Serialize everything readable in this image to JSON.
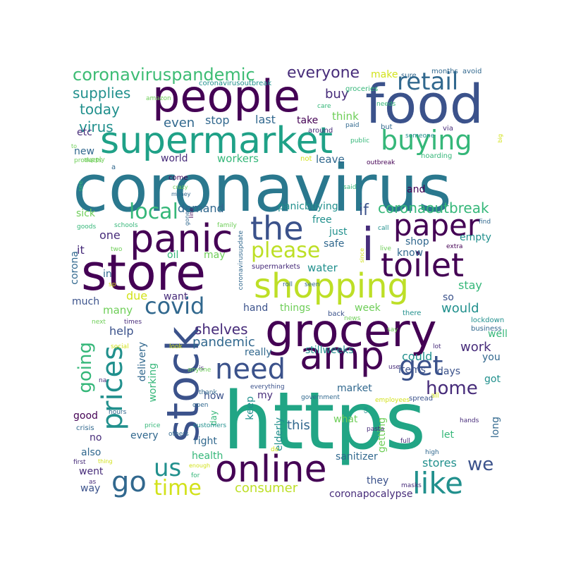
{
  "palette": {
    "dark_purple": "#440154",
    "indigo": "#472c7a",
    "blue": "#3b528b",
    "slate": "#31688e",
    "teal": "#21908d",
    "sea": "#1f9e89",
    "green": "#35b779",
    "lime": "#6ece58",
    "yellow": "#bddf26"
  },
  "words": [
    {
      "text": "coronavirus",
      "color": "#2a788e"
    },
    {
      "text": "https",
      "color": "#21a585"
    },
    {
      "text": "food",
      "color": "#3b528b"
    },
    {
      "text": "people",
      "color": "#440154"
    },
    {
      "text": "store",
      "color": "#440154"
    },
    {
      "text": "grocery",
      "color": "#440154"
    },
    {
      "text": "supermarket",
      "color": "#1fa187"
    },
    {
      "text": "stock",
      "color": "#3b528b"
    },
    {
      "text": "panic",
      "color": "#440154"
    },
    {
      "text": "shopping",
      "color": "#bddf26"
    },
    {
      "text": "amp",
      "color": "#440154"
    },
    {
      "text": "i",
      "color": "#472c7a"
    },
    {
      "text": "the",
      "color": "#3b528b"
    },
    {
      "text": "online",
      "color": "#440154"
    },
    {
      "text": "toilet",
      "color": "#440154"
    },
    {
      "text": "paper",
      "color": "#440154"
    },
    {
      "text": "prices",
      "color": "#21908d"
    },
    {
      "text": "buying",
      "color": "#35b779"
    },
    {
      "text": "retail",
      "color": "#31688e"
    },
    {
      "text": "go",
      "color": "#31688e"
    },
    {
      "text": "need",
      "color": "#3b528b"
    },
    {
      "text": "get",
      "color": "#3b528b"
    },
    {
      "text": "like",
      "color": "#21908d"
    },
    {
      "text": "please",
      "color": "#bddf26"
    },
    {
      "text": "covid",
      "color": "#31688e"
    },
    {
      "text": "going",
      "color": "#35b779"
    },
    {
      "text": "time",
      "color": "#d2e21b"
    },
    {
      "text": "us",
      "color": "#21908d"
    },
    {
      "text": "local",
      "color": "#35b779"
    },
    {
      "text": "home",
      "color": "#472c7a"
    },
    {
      "text": "we",
      "color": "#3b528b"
    },
    {
      "text": "coronavirusoutbreak",
      "color": "#21908d"
    },
    {
      "text": "coronavirus",
      "color": "#21908d"
    },
    {
      "text": "coronaoutbreak",
      "color": "#35b779"
    },
    {
      "text": "coronaviruspandemic",
      "color": "#3dbc74"
    },
    {
      "text": "everyone",
      "color": "#472c7a"
    },
    {
      "text": "supplies",
      "color": "#21908d"
    },
    {
      "text": "today",
      "color": "#21908d"
    },
    {
      "text": "virus",
      "color": "#21908d"
    },
    {
      "text": "even",
      "color": "#31688e"
    },
    {
      "text": "stop",
      "color": "#31688e"
    },
    {
      "text": "last",
      "color": "#31688e"
    },
    {
      "text": "take",
      "color": "#440154"
    },
    {
      "text": "buy",
      "color": "#472c7a"
    },
    {
      "text": "make",
      "color": "#d2e21b"
    },
    {
      "text": "think",
      "color": "#6ece58"
    },
    {
      "text": "etc",
      "color": "#472c7a"
    },
    {
      "text": "new",
      "color": "#31688e"
    },
    {
      "text": "world",
      "color": "#472c7a"
    },
    {
      "text": "workers",
      "color": "#35b779"
    },
    {
      "text": "leave",
      "color": "#31688e"
    },
    {
      "text": "and",
      "color": "#440154"
    },
    {
      "text": "demand",
      "color": "#31688e"
    },
    {
      "text": "panicbuying",
      "color": "#21908d"
    },
    {
      "text": "if",
      "color": "#3b528b"
    },
    {
      "text": "free",
      "color": "#21908d"
    },
    {
      "text": "just",
      "color": "#21908d"
    },
    {
      "text": "safe",
      "color": "#31688e"
    },
    {
      "text": "shop",
      "color": "#31688e"
    },
    {
      "text": "empty",
      "color": "#21908d"
    },
    {
      "text": "know",
      "color": "#31688e"
    },
    {
      "text": "water",
      "color": "#21908d"
    },
    {
      "text": "stay",
      "color": "#35b779"
    },
    {
      "text": "one",
      "color": "#472c7a"
    },
    {
      "text": "it",
      "color": "#472c7a"
    },
    {
      "text": "oil",
      "color": "#35b779"
    },
    {
      "text": "may",
      "color": "#6ece58"
    },
    {
      "text": "sick",
      "color": "#6ece58"
    },
    {
      "text": "corona",
      "color": "#31688e"
    },
    {
      "text": "in",
      "color": "#31688e"
    },
    {
      "text": "due",
      "color": "#d2e21b"
    },
    {
      "text": "want",
      "color": "#472c7a"
    },
    {
      "text": "much",
      "color": "#3b528b"
    },
    {
      "text": "many",
      "color": "#6ece58"
    },
    {
      "text": "hand",
      "color": "#3b528b"
    },
    {
      "text": "things",
      "color": "#6ece58"
    },
    {
      "text": "week",
      "color": "#6ece58"
    },
    {
      "text": "so",
      "color": "#3b528b"
    },
    {
      "text": "would",
      "color": "#21908d"
    },
    {
      "text": "help",
      "color": "#3b528b"
    },
    {
      "text": "shelves",
      "color": "#472c7a"
    },
    {
      "text": "pandemic",
      "color": "#31688e"
    },
    {
      "text": "really",
      "color": "#31688e"
    },
    {
      "text": "stillweeks",
      "color": "#21908d"
    },
    {
      "text": "work",
      "color": "#472c7a"
    },
    {
      "text": "well",
      "color": "#35b779"
    },
    {
      "text": "could",
      "color": "#21908d"
    },
    {
      "text": "days",
      "color": "#3b528b"
    },
    {
      "text": "you",
      "color": "#31688e"
    },
    {
      "text": "got",
      "color": "#21908d"
    },
    {
      "text": "delivery",
      "color": "#31688e"
    },
    {
      "text": "working",
      "color": "#35b779"
    },
    {
      "text": "how",
      "color": "#3b528b"
    },
    {
      "text": "my",
      "color": "#472c7a"
    },
    {
      "text": "market",
      "color": "#31688e"
    },
    {
      "text": "items",
      "color": "#3b528b"
    },
    {
      "text": "day",
      "color": "#35b779"
    },
    {
      "text": "keep",
      "color": "#21908d"
    },
    {
      "text": "this",
      "color": "#31688e"
    },
    {
      "text": "what",
      "color": "#6ece58"
    },
    {
      "text": "getting",
      "color": "#6ece58"
    },
    {
      "text": "let",
      "color": "#35b779"
    },
    {
      "text": "long",
      "color": "#31688e"
    },
    {
      "text": "good",
      "color": "#440154"
    },
    {
      "text": "no",
      "color": "#472c7a"
    },
    {
      "text": "every",
      "color": "#31688e"
    },
    {
      "text": "right",
      "color": "#31688e"
    },
    {
      "text": "also",
      "color": "#31688e"
    },
    {
      "text": "health",
      "color": "#35b779"
    },
    {
      "text": "elderly",
      "color": "#21908d"
    },
    {
      "text": "sanitizer",
      "color": "#31688e"
    },
    {
      "text": "stores",
      "color": "#21908d"
    },
    {
      "text": "went",
      "color": "#472c7a"
    },
    {
      "text": "way",
      "color": "#3b528b"
    },
    {
      "text": "consumer",
      "color": "#bddf26"
    },
    {
      "text": "they",
      "color": "#3b528b"
    },
    {
      "text": "coronapocalypse",
      "color": "#472c7a"
    },
    {
      "text": "months",
      "color": "#31688e"
    },
    {
      "text": "avoid",
      "color": "#31688e"
    },
    {
      "text": "sure",
      "color": "#31688e"
    },
    {
      "text": "groceries",
      "color": "#35b779"
    },
    {
      "text": "care",
      "color": "#35b779"
    },
    {
      "text": "needs",
      "color": "#35b779"
    },
    {
      "text": "amazon",
      "color": "#6ece58"
    },
    {
      "text": "paid",
      "color": "#31688e"
    },
    {
      "text": "but",
      "color": "#31688e"
    },
    {
      "text": "via",
      "color": "#472c7a"
    },
    {
      "text": "big",
      "color": "#d2e21b"
    },
    {
      "text": "around",
      "color": "#472c7a"
    },
    {
      "text": "someone",
      "color": "#21908d"
    },
    {
      "text": "public",
      "color": "#35b779"
    },
    {
      "text": "hoarding",
      "color": "#35b779"
    },
    {
      "text": "to",
      "color": "#6ece58"
    },
    {
      "text": "supply",
      "color": "#6ece58"
    },
    {
      "text": "products",
      "color": "#6ece58"
    },
    {
      "text": "a",
      "color": "#31688e"
    },
    {
      "text": "not",
      "color": "#d2e21b"
    },
    {
      "text": "outbreak",
      "color": "#440154"
    },
    {
      "text": "come",
      "color": "#440154"
    },
    {
      "text": "crazy",
      "color": "#6ece58"
    },
    {
      "text": "money",
      "color": "#31688e"
    },
    {
      "text": "said",
      "color": "#35b779"
    },
    {
      "text": "see",
      "color": "#35b779"
    },
    {
      "text": "gone",
      "color": "#31688e"
    },
    {
      "text": "line",
      "color": "#440154"
    },
    {
      "text": "family",
      "color": "#6ece58"
    },
    {
      "text": "coronavirusupdate",
      "color": "#31688e"
    },
    {
      "text": "call",
      "color": "#21908d"
    },
    {
      "text": "find",
      "color": "#31688e"
    },
    {
      "text": "goods",
      "color": "#35b779"
    },
    {
      "text": "schools",
      "color": "#35b779"
    },
    {
      "text": "two",
      "color": "#6ece58"
    },
    {
      "text": "since",
      "color": "#d2e21b"
    },
    {
      "text": "live",
      "color": "#6ece58"
    },
    {
      "text": "extra",
      "color": "#440154"
    },
    {
      "text": "supermarkets",
      "color": "#472c7a"
    },
    {
      "text": "sp",
      "color": "#d2e21b"
    },
    {
      "text": "roll",
      "color": "#31688e"
    },
    {
      "text": "seen",
      "color": "#31688e"
    },
    {
      "text": "news",
      "color": "#6ece58"
    },
    {
      "text": "next",
      "color": "#6ece58"
    },
    {
      "text": "times",
      "color": "#472c7a"
    },
    {
      "text": "back",
      "color": "#3b528b"
    },
    {
      "text": "there",
      "color": "#21908d"
    },
    {
      "text": "lockdown",
      "color": "#21908d"
    },
    {
      "text": "business",
      "color": "#31688e"
    },
    {
      "text": "say",
      "color": "#6ece58"
    },
    {
      "text": "social",
      "color": "#d2e21b"
    },
    {
      "text": "look",
      "color": "#d2e21b"
    },
    {
      "text": "lot",
      "color": "#472c7a"
    },
    {
      "text": "is",
      "color": "#472c7a"
    },
    {
      "text": "use",
      "color": "#472c7a"
    },
    {
      "text": "na",
      "color": "#472c7a"
    },
    {
      "text": "anyone",
      "color": "#6ece58"
    },
    {
      "text": "thank",
      "color": "#31688e"
    },
    {
      "text": "everything",
      "color": "#3b528b"
    },
    {
      "text": "government",
      "color": "#31688e"
    },
    {
      "text": "employees",
      "color": "#d2e21b"
    },
    {
      "text": "all",
      "color": "#d2e21b"
    },
    {
      "text": "spread",
      "color": "#3b528b"
    },
    {
      "text": "open",
      "color": "#31688e"
    },
    {
      "text": "hours",
      "color": "#31688e"
    },
    {
      "text": "crisis",
      "color": "#31688e"
    },
    {
      "text": "customers",
      "color": "#21908d"
    },
    {
      "text": "price",
      "color": "#35b779"
    },
    {
      "text": "others",
      "color": "#31688e"
    },
    {
      "text": "ca",
      "color": "#21908d"
    },
    {
      "text": "pasta",
      "color": "#472c7a"
    },
    {
      "text": "hands",
      "color": "#472c7a"
    },
    {
      "text": "full",
      "color": "#472c7a"
    },
    {
      "text": "high",
      "color": "#31688e"
    },
    {
      "text": "do",
      "color": "#d2e21b"
    },
    {
      "text": "first",
      "color": "#472c7a"
    },
    {
      "text": "thing",
      "color": "#d2e21b"
    },
    {
      "text": "enough",
      "color": "#d2e21b"
    },
    {
      "text": "as",
      "color": "#472c7a"
    },
    {
      "text": "for",
      "color": "#35b779"
    },
    {
      "text": "masks",
      "color": "#472c7a"
    }
  ]
}
